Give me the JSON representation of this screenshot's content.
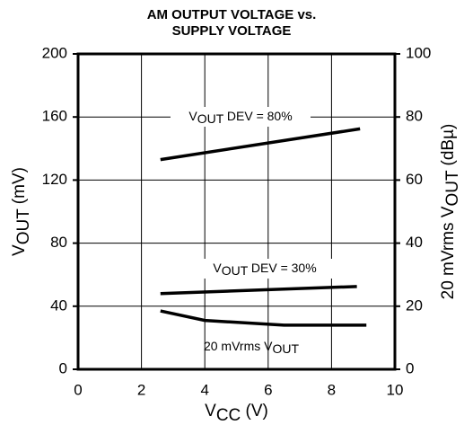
{
  "chart_data": {
    "type": "line",
    "title": [
      "AM OUTPUT VOLTAGE vs.",
      "SUPPLY VOLTAGE"
    ],
    "x_label": "VCC (V)",
    "y_label": "VOUT (mV)",
    "y2_label": "20 mVrms VOUT (dBµ)",
    "xlim": [
      0,
      10
    ],
    "xticks": [
      0,
      2,
      4,
      6,
      8,
      10
    ],
    "ylim": [
      0,
      200
    ],
    "yticks": [
      0,
      40,
      80,
      120,
      160,
      200
    ],
    "y2lim": [
      0,
      100
    ],
    "y2ticks": [
      0,
      20,
      40,
      60,
      80,
      100
    ],
    "grid": true,
    "series": [
      {
        "name": "VOUT DEV = 80%",
        "color": "#000000",
        "x": [
          2.6,
          8.9
        ],
        "values": [
          133,
          152.5
        ]
      },
      {
        "name": "VOUT DEV = 30%",
        "color": "#000000",
        "x": [
          2.6,
          8.8
        ],
        "values": [
          48,
          52.5
        ]
      },
      {
        "name": "20 mVrms VOUT",
        "color": "#000000",
        "axis": "y2",
        "x": [
          2.6,
          4,
          6.5,
          9.1
        ],
        "values": [
          18.5,
          15.5,
          14,
          14
        ]
      }
    ]
  }
}
